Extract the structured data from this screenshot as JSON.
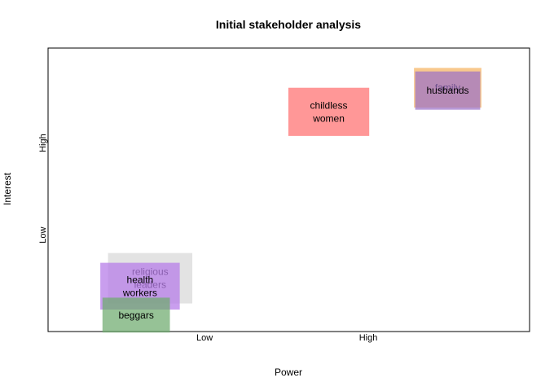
{
  "chart_data": {
    "type": "scatter",
    "title": "Initial stakeholder analysis",
    "xlabel": "Power",
    "ylabel": "Interest",
    "xlim": [
      0,
      10
    ],
    "ylim": [
      0,
      10
    ],
    "x_ticks": [
      {
        "value": 3.25,
        "label": "Low"
      },
      {
        "value": 6.65,
        "label": "High"
      }
    ],
    "y_ticks": [
      {
        "value": 3.4,
        "label": "Low"
      },
      {
        "value": 6.65,
        "label": "High"
      }
    ],
    "grid": false,
    "stakeholders": [
      {
        "lines": [
          "religious",
          "leaders"
        ],
        "x": 2.12,
        "y": 1.88,
        "w": 1.75,
        "h": 1.78,
        "color": "#d9d9d9",
        "opacity": 0.75
      },
      {
        "lines": [
          "health",
          "workers"
        ],
        "x": 1.91,
        "y": 1.6,
        "w": 1.65,
        "h": 1.65,
        "color": "#b77ee8",
        "opacity": 0.75
      },
      {
        "lines": [
          "beggars"
        ],
        "x": 1.83,
        "y": 0.58,
        "w": 1.4,
        "h": 1.23,
        "color": "#6eaa6e",
        "opacity": 0.72
      },
      {
        "lines": [
          "childless",
          "women"
        ],
        "x": 5.83,
        "y": 7.75,
        "w": 1.68,
        "h": 1.7,
        "color": "#ff6f6f",
        "opacity": 0.72
      },
      {
        "lines": [
          "family"
        ],
        "x": 8.3,
        "y": 8.6,
        "w": 1.4,
        "h": 1.4,
        "color": "#f5b15c",
        "opacity": 0.7
      },
      {
        "lines": [
          "husbands"
        ],
        "x": 8.3,
        "y": 8.5,
        "w": 1.35,
        "h": 1.35,
        "color": "#9a6fc7",
        "opacity": 0.7
      }
    ]
  }
}
